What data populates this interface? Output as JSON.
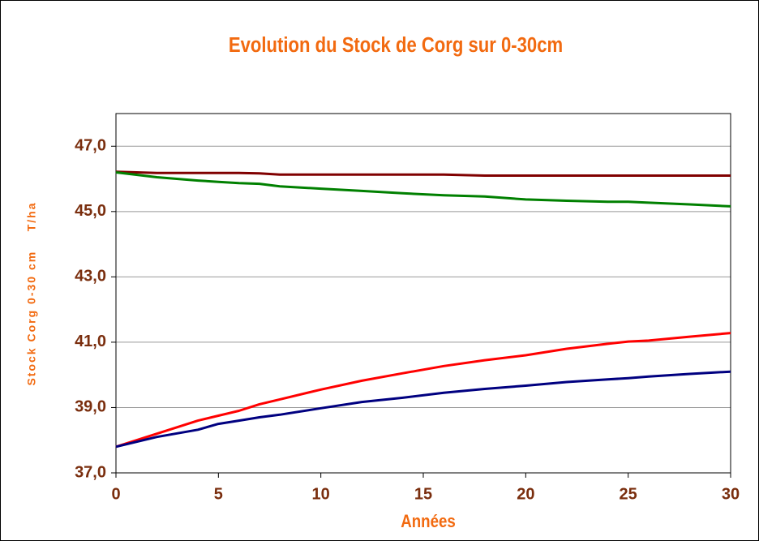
{
  "chart_data": {
    "type": "line",
    "title": "Evolution du Stock de Corg sur 0-30cm",
    "xlabel": "Années",
    "ylabel": "Stock Corg 0-30 cm    T/ha",
    "x": [
      0,
      2,
      4,
      5,
      6,
      7,
      8,
      10,
      12,
      14,
      16,
      18,
      20,
      22,
      24,
      25,
      26,
      28,
      30
    ],
    "series": [
      {
        "color": "#800000",
        "values": [
          46.22,
          46.18,
          46.18,
          46.18,
          46.18,
          46.17,
          46.13,
          46.13,
          46.13,
          46.13,
          46.13,
          46.1,
          46.1,
          46.1,
          46.1,
          46.1,
          46.1,
          46.1,
          46.1
        ]
      },
      {
        "color": "#008000",
        "values": [
          46.2,
          46.05,
          45.95,
          45.91,
          45.87,
          45.85,
          45.77,
          45.7,
          45.63,
          45.56,
          45.5,
          45.46,
          45.37,
          45.33,
          45.3,
          45.3,
          45.27,
          45.22,
          45.16
        ]
      },
      {
        "color": "#ff0000",
        "values": [
          37.8,
          38.2,
          38.6,
          38.75,
          38.9,
          39.1,
          39.25,
          39.55,
          39.82,
          40.05,
          40.27,
          40.45,
          40.6,
          40.8,
          40.95,
          41.02,
          41.05,
          41.17,
          41.28
        ]
      },
      {
        "color": "#000080",
        "values": [
          37.8,
          38.1,
          38.32,
          38.5,
          38.6,
          38.7,
          38.78,
          38.98,
          39.17,
          39.3,
          39.45,
          39.57,
          39.67,
          39.78,
          39.86,
          39.9,
          39.95,
          40.03,
          40.1
        ]
      }
    ],
    "xlim": [
      0,
      30
    ],
    "xticks": [
      0,
      5,
      10,
      15,
      20,
      25,
      30
    ],
    "ylim": [
      37,
      48
    ],
    "yticks": [
      {
        "value": 37,
        "label": "37,0"
      },
      {
        "value": 39,
        "label": "39,0"
      },
      {
        "value": 41,
        "label": "41,0"
      },
      {
        "value": 43,
        "label": "43,0"
      },
      {
        "value": 45,
        "label": "45,0"
      },
      {
        "value": 47,
        "label": "47,0"
      }
    ],
    "grid": true
  }
}
